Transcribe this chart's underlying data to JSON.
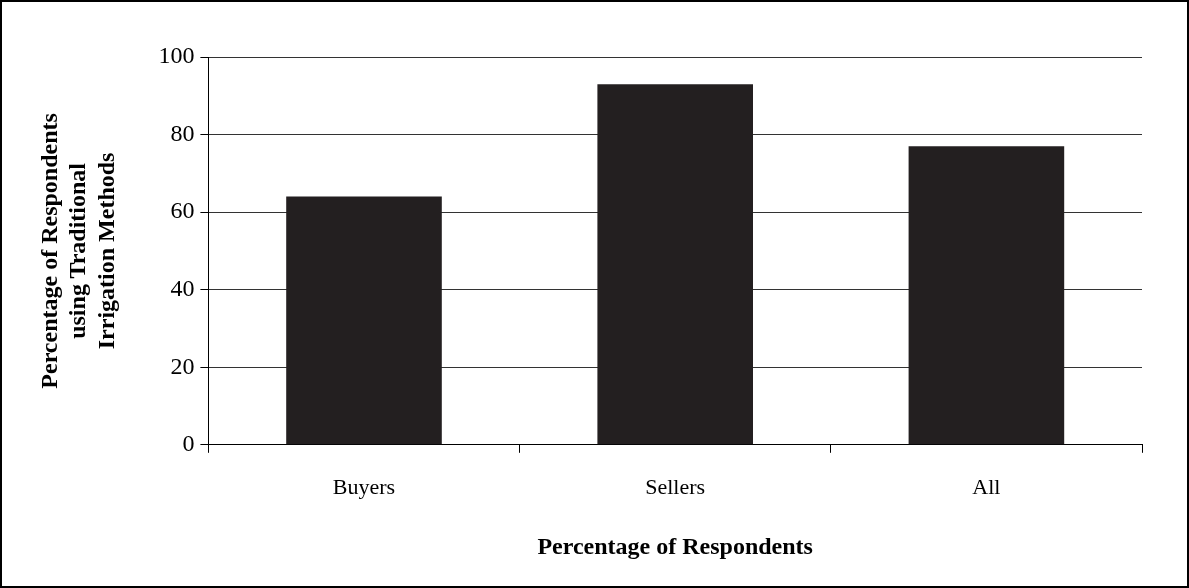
{
  "chart_data": {
    "type": "bar",
    "xlabel": "Percentage of Respondents",
    "ylabel": "Percentage of Respondents using Traditional Irrigation Methods",
    "categories": [
      "Buyers",
      "Sellers",
      "All"
    ],
    "values": [
      64,
      93,
      77
    ],
    "color": "#231f20",
    "ylim": [
      0,
      100
    ],
    "yticks": [
      0,
      20,
      40,
      60,
      80,
      100
    ],
    "grid": "y",
    "legend": false
  }
}
